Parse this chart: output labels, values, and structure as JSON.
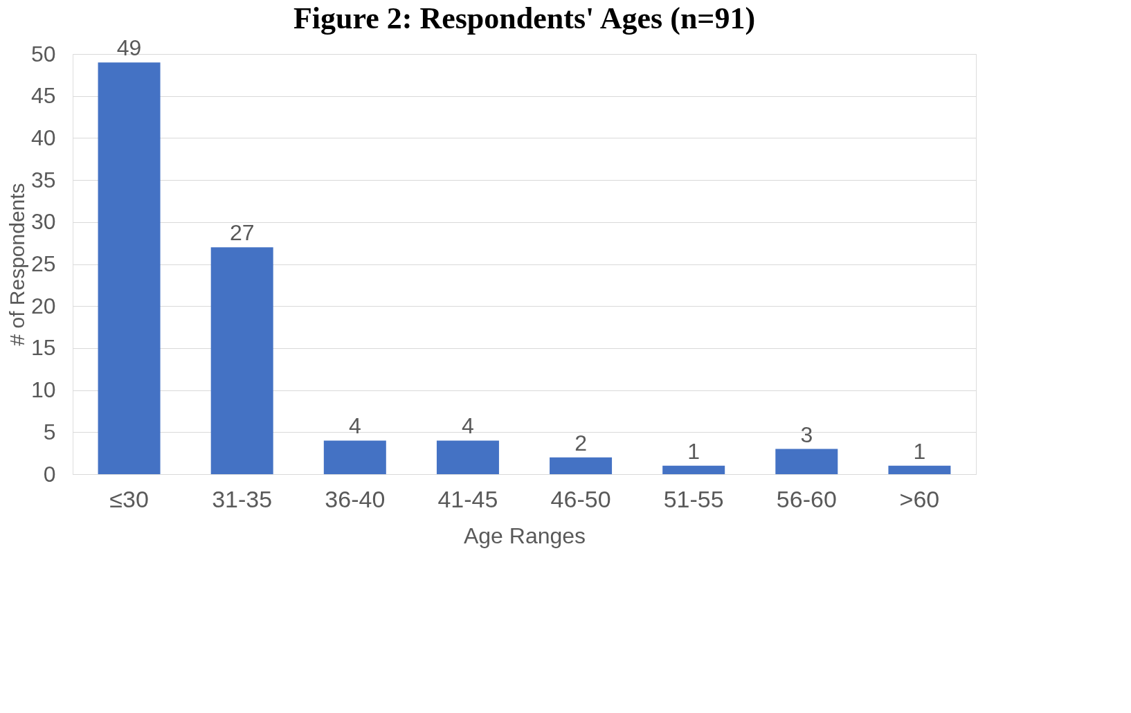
{
  "chart_data": {
    "type": "bar",
    "title": "Figure 2: Respondents' Ages (n=91)",
    "xlabel": "Age Ranges",
    "ylabel": "# of Respondents",
    "categories": [
      "≤30",
      "31-35",
      "36-40",
      "41-45",
      "46-50",
      "51-55",
      "56-60",
      ">60"
    ],
    "values": [
      49,
      27,
      4,
      4,
      2,
      1,
      3,
      1
    ],
    "color": "#4472c4",
    "ylim": [
      0,
      50
    ],
    "yticks": [
      0,
      5,
      10,
      15,
      20,
      25,
      30,
      35,
      40,
      45,
      50
    ],
    "grid": "y",
    "data_labels": true
  }
}
